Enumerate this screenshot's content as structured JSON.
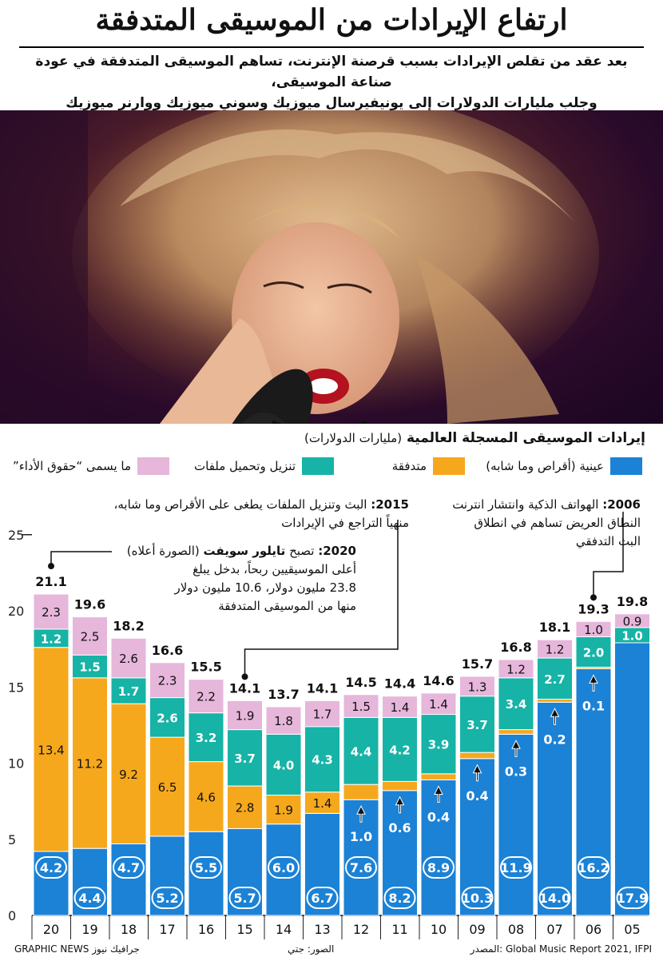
{
  "header": {
    "title": "ارتفاع الإيرادات من الموسيقى المتدفقة",
    "subtitle_line1": "بعد عقد من تقلص الإيرادات بسبب قرصنة الإنترنت، تساهم الموسيقى المتدفقة في عودة صناعة الموسيقى،",
    "subtitle_line2": "وجلب مليارات الدولارات إلى يونيفيرسال ميوزيك وسوني ميوزيك ووارنر ميوزيك"
  },
  "chart_title": "إيرادات الموسيقى المسجلة العالمية",
  "chart_unit": "(مليارات الدولارات)",
  "legend": {
    "physical": "عينية (أقراص وما شابه)",
    "streaming": "متدفقة",
    "downloads": "تنزيل وتحميل ملفات",
    "performance": "ما يسمى “حقوق الأداء”"
  },
  "notes": {
    "n2006_year": "2006:",
    "n2006_l1": "الهواتف الذكية وانتشار انترنت",
    "n2006_l2": "النطاق العريض تساهم في انطلاق",
    "n2006_l3": "البث التدفقي",
    "n2015_year": "2015:",
    "n2015_l1": "البث وتنزيل الملفات يطغى على الأقراص وما شابه،",
    "n2015_l2": "منهياً التراجع في الإيرادات",
    "n2020_year": "2020:",
    "n2020_pre": "تصبح",
    "n2020_name": "تايلور سويفت",
    "n2020_post": "(الصورة أعلاه)",
    "n2020_l2": "أعلى الموسيقيين ربحاً، بدخل يبلغ",
    "n2020_l3": "23.8 مليون دولار، 10.6 مليون دولار",
    "n2020_l4": "منها من الموسيقى المتدفقة"
  },
  "colors": {
    "physical": "#1b82d6",
    "streaming": "#f6a81c",
    "downloads": "#16b3a6",
    "performance": "#e6b6db"
  },
  "credits": {
    "source": "المصدر: Global Music Report 2021, IFPI",
    "photos": "الصور: جتي",
    "agency": "GRAPHIC NEWS جرافيك نيوز"
  },
  "chart_data": {
    "type": "bar",
    "stacked": true,
    "categories": [
      "20",
      "19",
      "18",
      "17",
      "16",
      "15",
      "14",
      "13",
      "12",
      "11",
      "10",
      "09",
      "08",
      "07",
      "06",
      "05"
    ],
    "ylim": [
      0,
      25
    ],
    "yticks": [
      0,
      5,
      10,
      15,
      20,
      25
    ],
    "totals": [
      "21.1",
      "19.6",
      "18.2",
      "16.6",
      "15.5",
      "14.1",
      "13.7",
      "14.1",
      "14.5",
      "14.4",
      "14.6",
      "15.7",
      "16.8",
      "18.1",
      "19.3",
      "19.8"
    ],
    "series": [
      {
        "key": "physical",
        "values": [
          4.2,
          4.4,
          4.7,
          5.2,
          5.5,
          5.7,
          6.0,
          6.7,
          7.6,
          8.2,
          8.9,
          10.3,
          11.9,
          14.0,
          16.2,
          17.9
        ]
      },
      {
        "key": "streaming",
        "values": [
          13.4,
          11.2,
          9.2,
          6.5,
          4.6,
          2.8,
          1.9,
          1.4,
          1.0,
          0.6,
          0.4,
          0.4,
          0.3,
          0.2,
          0.1,
          0.0
        ]
      },
      {
        "key": "downloads",
        "values": [
          1.2,
          1.5,
          1.7,
          2.6,
          3.2,
          3.7,
          4.0,
          4.3,
          4.4,
          4.2,
          3.9,
          3.7,
          3.4,
          2.7,
          2.0,
          1.0
        ]
      },
      {
        "key": "performance",
        "values": [
          2.3,
          2.5,
          2.6,
          2.3,
          2.2,
          1.9,
          1.8,
          1.7,
          1.5,
          1.4,
          1.4,
          1.3,
          1.2,
          1.2,
          1.0,
          0.9
        ]
      }
    ]
  }
}
